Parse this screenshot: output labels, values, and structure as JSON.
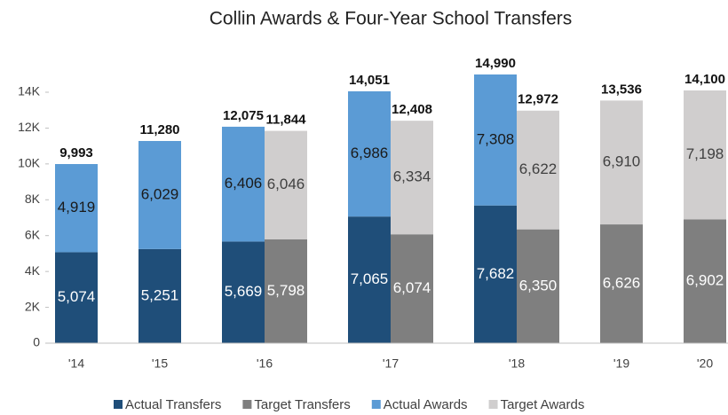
{
  "chart_data": {
    "type": "stacked-bar",
    "title": "Collin Awards & Four-Year School Transfers",
    "categories": [
      "'14",
      "'15",
      "'16",
      "'17",
      "'18",
      "'19",
      "'20"
    ],
    "ylim": [
      0,
      14000
    ],
    "yticks": [
      0,
      {
        "value": 2000,
        "label": "2K"
      },
      {
        "value": 4000,
        "label": "4K"
      },
      {
        "value": 6000,
        "label": "6K"
      },
      {
        "value": 8000,
        "label": "8K"
      },
      {
        "value": 10000,
        "label": "10K"
      },
      {
        "value": 12000,
        "label": "12K"
      },
      {
        "value": 14000,
        "label": "14K"
      }
    ],
    "grid": false,
    "legend": "bottom",
    "series": [
      {
        "name": "Actual Transfers",
        "stack": "actual",
        "color": "#1f4e79",
        "values": [
          5074,
          5251,
          5669,
          7065,
          7682,
          null,
          null
        ],
        "value_labels": [
          "5,074",
          "5,251",
          "5,669",
          "7,065",
          "7,682",
          null,
          null
        ]
      },
      {
        "name": "Target Transfers",
        "stack": "target",
        "color": "#7f7f7f",
        "values": [
          null,
          null,
          5798,
          6074,
          6350,
          6626,
          6902
        ],
        "value_labels": [
          null,
          null,
          "5,798",
          "6,074",
          "6,350",
          "6,626",
          "6,902"
        ]
      },
      {
        "name": "Actual Awards",
        "stack": "actual",
        "color": "#5b9bd5",
        "values": [
          4919,
          6029,
          6406,
          6986,
          7308,
          null,
          null
        ],
        "value_labels": [
          "4,919",
          "6,029",
          "6,406",
          "6,986",
          "7,308",
          null,
          null
        ]
      },
      {
        "name": "Target Awards",
        "stack": "target",
        "color": "#d0cece",
        "values": [
          null,
          null,
          6046,
          6334,
          6622,
          6910,
          7198
        ],
        "value_labels": [
          null,
          null,
          "6,046",
          "6,334",
          "6,622",
          "6,910",
          "7,198"
        ]
      }
    ],
    "totals": {
      "actual": {
        "values": [
          9993,
          11280,
          12075,
          14051,
          14990,
          null,
          null
        ],
        "value_labels": [
          "9,993",
          "11,280",
          "12,075",
          "14,051",
          "14,990",
          null,
          null
        ]
      },
      "target": {
        "values": [
          null,
          null,
          11844,
          12408,
          12972,
          13536,
          14100
        ],
        "value_labels": [
          null,
          null,
          "11,844",
          "12,408",
          "12,972",
          "13,536",
          "14,100"
        ]
      }
    }
  }
}
